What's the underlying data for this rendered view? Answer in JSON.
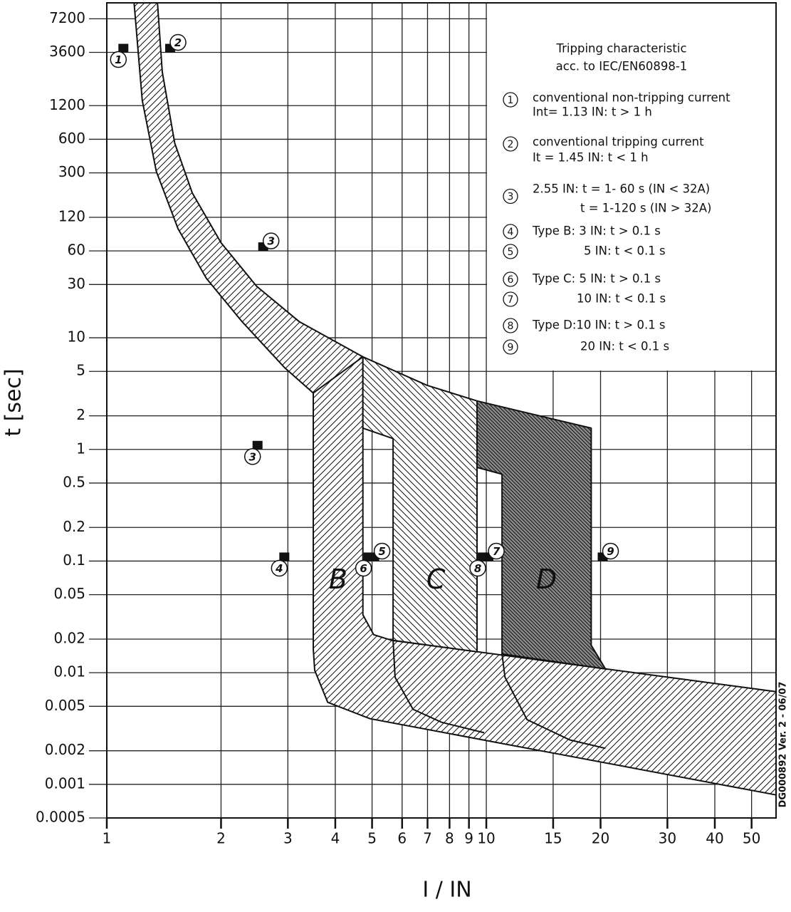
{
  "chart_data": {
    "type": "trip-curve",
    "ylabel": "t [sec]",
    "xlabel": "I / IN",
    "side_note": "DG000892 Ver. 2 - 06/07",
    "log_x": true,
    "log_y": true,
    "grid": true,
    "xlim": [
      1,
      58
    ],
    "ylim": [
      0.0005,
      10000
    ],
    "xticks": [
      1,
      2,
      3,
      4,
      5,
      6,
      7,
      8,
      9,
      10,
      15,
      20,
      30,
      40,
      50
    ],
    "yticks": [
      7200,
      3600,
      1200,
      600,
      300,
      120,
      60,
      30,
      10,
      5,
      2,
      1,
      0.5,
      0.2,
      0.1,
      0.05,
      0.02,
      0.01,
      0.005,
      0.002,
      0.001,
      0.0005
    ],
    "regions": [
      {
        "hatch": "/",
        "fill": "#ffffff",
        "x": [
          1.36,
          1.4,
          1.51,
          1.68,
          2.0,
          2.48,
          3.21,
          4.73,
          4.73,
          3.5,
          2.94,
          2.27,
          1.83,
          1.54,
          1.35,
          1.24,
          1.18
        ],
        "y": [
          10000,
          2410,
          555,
          198,
          71,
          29,
          14,
          6.75,
          1.55,
          3.2,
          5.4,
          14,
          34,
          95,
          310,
          1340,
          10000
        ]
      },
      {
        "hatch": "/",
        "fill": "#ffffff",
        "x": [
          3.5,
          4.73,
          4.73,
          5.05,
          5.63,
          58,
          58,
          4.94,
          3.82,
          3.53,
          3.5
        ],
        "y": [
          3.2,
          6.75,
          0.033,
          0.0219,
          0.0195,
          0.00677,
          0.000804,
          0.00387,
          0.00543,
          0.0105,
          0.0163
        ]
      },
      {
        "hatch": "\\",
        "fill": "#ffffff",
        "x": [
          4.73,
          6.98,
          9.45,
          9.45,
          5.68,
          5.68,
          4.73
        ],
        "y": [
          6.75,
          3.75,
          2.72,
          0.0154,
          0.0195,
          1.25,
          1.55
        ]
      },
      {
        "hatch": "\\",
        "fill": "#8a8a8a",
        "x": [
          9.45,
          18.9,
          18.9,
          20.6,
          11.0,
          11.0,
          9.45
        ],
        "y": [
          2.72,
          1.55,
          0.0176,
          0.0108,
          0.0147,
          0.6,
          0.69
        ]
      }
    ],
    "curves": [
      {
        "x": [
          5.68,
          5.75,
          6.41,
          7.62,
          9.87
        ],
        "y": [
          0.0195,
          0.0091,
          0.0047,
          0.0036,
          0.0029
        ]
      },
      {
        "x": [
          11.0,
          11.2,
          12.8,
          16.6,
          20.6
        ],
        "y": [
          0.0147,
          0.0091,
          0.0038,
          0.0025,
          0.0021
        ]
      }
    ],
    "region_labels": [
      {
        "text": "B",
        "x": 4.07,
        "y": 0.066
      },
      {
        "text": "C",
        "x": 7.36,
        "y": 0.066
      },
      {
        "text": "D",
        "x": 14.4,
        "y": 0.066
      }
    ],
    "markers": [
      {
        "text": "1",
        "x": 1.13,
        "y": 3600,
        "side": "sw"
      },
      {
        "text": "2",
        "x": 1.45,
        "y": 3600,
        "side": "ne"
      },
      {
        "text": "3",
        "x": 2.55,
        "y": 60,
        "side": "ne"
      },
      {
        "text": "3",
        "x": 2.55,
        "y": 1,
        "side": "sw"
      },
      {
        "text": "4",
        "x": 3,
        "y": 0.1,
        "side": "sw"
      },
      {
        "text": "5",
        "x": 5,
        "y": 0.1,
        "side": "ne"
      },
      {
        "text": "6",
        "x": 5,
        "y": 0.1,
        "side": "sw"
      },
      {
        "text": "7",
        "x": 10,
        "y": 0.1,
        "side": "ne"
      },
      {
        "text": "8",
        "x": 10,
        "y": 0.1,
        "side": "sw"
      },
      {
        "text": "9",
        "x": 20,
        "y": 0.1,
        "side": "ne"
      }
    ],
    "legend_title": [
      "Tripping characteristic",
      "acc. to IEC/EN60898-1"
    ],
    "notes": [
      {
        "num": "1",
        "lines": [
          "conventional non-tripping current",
          "Int= 1.13 IN: t > 1 h"
        ]
      },
      {
        "num": "2",
        "lines": [
          "conventional tripping current",
          "It = 1.45 IN: t < 1 h"
        ]
      },
      {
        "num": "3",
        "lines": [
          "2.55 IN: t = 1- 60 s (IN < 32A)",
          "t = 1-120 s (IN > 32A)"
        ]
      },
      {
        "num": "4",
        "lines": [
          "Type B: 3 IN: t > 0.1 s"
        ]
      },
      {
        "num": "5",
        "lines": [
          "5 IN: t < 0.1 s"
        ]
      },
      {
        "num": "6",
        "lines": [
          "Type C: 5 IN: t > 0.1 s"
        ]
      },
      {
        "num": "7",
        "lines": [
          "10 IN: t < 0.1 s"
        ]
      },
      {
        "num": "8",
        "lines": [
          "Type D:10 IN: t > 0.1 s"
        ]
      },
      {
        "num": "9",
        "lines": [
          "20 IN: t < 0.1 s"
        ]
      }
    ]
  }
}
